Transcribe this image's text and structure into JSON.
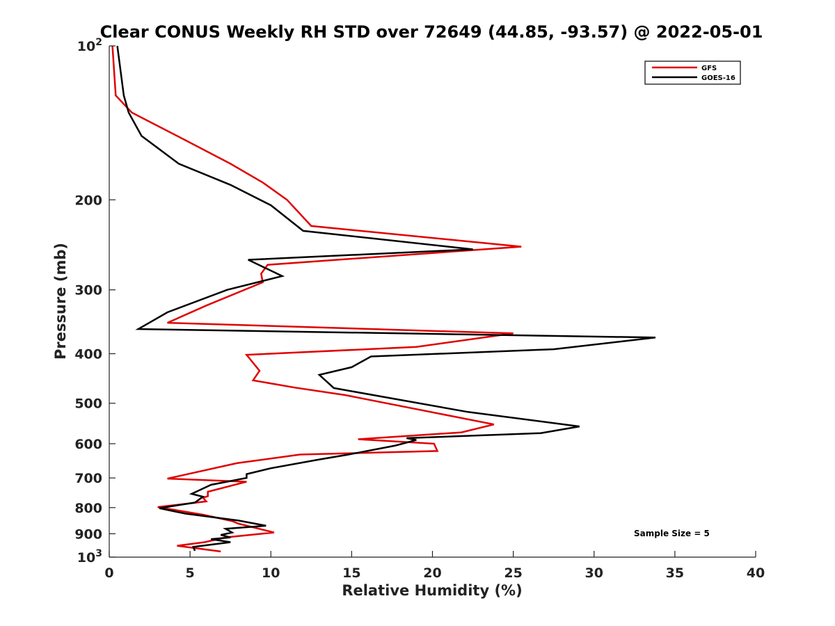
{
  "chart_data": {
    "type": "line",
    "title": "Clear CONUS Weekly RH STD over 72649 (44.85, -93.57) @ 2022-05-01",
    "xlabel": "Relative Humidity (%)",
    "ylabel": "Pressure (mb)",
    "xlim": [
      0,
      40
    ],
    "ylim": [
      100,
      1000
    ],
    "y_scale": "log",
    "y_reversed": true,
    "grid": false,
    "legend_position": "top-right",
    "x_ticks": [
      "0",
      "5",
      "10",
      "15",
      "20",
      "25",
      "30",
      "35",
      "40"
    ],
    "y_ticks": [
      {
        "value": 100,
        "base": "10",
        "exp": "2"
      },
      {
        "value": 200,
        "label": "200"
      },
      {
        "value": 300,
        "label": "300"
      },
      {
        "value": 400,
        "label": "400"
      },
      {
        "value": 500,
        "label": "500"
      },
      {
        "value": 600,
        "label": "600"
      },
      {
        "value": 700,
        "label": "700"
      },
      {
        "value": 800,
        "label": "800"
      },
      {
        "value": 900,
        "label": "900"
      },
      {
        "value": 1000,
        "base": "10",
        "exp": "3"
      }
    ],
    "series": [
      {
        "name": "GFS",
        "color": "#e00000",
        "points": [
          [
            0.2,
            100
          ],
          [
            0.4,
            125
          ],
          [
            1.4,
            135
          ],
          [
            4.2,
            150
          ],
          [
            7.5,
            170
          ],
          [
            9.5,
            185
          ],
          [
            11.0,
            200
          ],
          [
            12.5,
            225
          ],
          [
            25.5,
            247
          ],
          [
            9.8,
            268
          ],
          [
            9.4,
            279
          ],
          [
            9.5,
            290
          ],
          [
            6.0,
            322
          ],
          [
            3.6,
            348
          ],
          [
            25.0,
            365
          ],
          [
            19.0,
            388
          ],
          [
            8.5,
            402
          ],
          [
            9.3,
            432
          ],
          [
            8.9,
            451
          ],
          [
            11.5,
            466
          ],
          [
            14.6,
            482
          ],
          [
            23.8,
            550
          ],
          [
            21.8,
            570
          ],
          [
            15.4,
            588
          ],
          [
            20.1,
            600
          ],
          [
            20.3,
            620
          ],
          [
            11.8,
            630
          ],
          [
            7.9,
            655
          ],
          [
            3.6,
            702
          ],
          [
            8.5,
            712
          ],
          [
            6.1,
            745
          ],
          [
            6.1,
            760
          ],
          [
            5.8,
            765
          ],
          [
            6.0,
            778
          ],
          [
            3.0,
            798
          ],
          [
            5.8,
            826
          ],
          [
            7.6,
            850
          ],
          [
            8.0,
            860
          ],
          [
            10.2,
            895
          ],
          [
            7.2,
            915
          ],
          [
            5.9,
            935
          ],
          [
            4.2,
            950
          ],
          [
            6.9,
            975
          ]
        ]
      },
      {
        "name": "GOES-16",
        "color": "#000000",
        "points": [
          [
            0.5,
            100
          ],
          [
            0.9,
            125
          ],
          [
            1.2,
            135
          ],
          [
            2.0,
            150
          ],
          [
            4.3,
            170
          ],
          [
            7.5,
            187
          ],
          [
            10.0,
            205
          ],
          [
            12.0,
            230
          ],
          [
            22.5,
            250
          ],
          [
            8.6,
            262
          ],
          [
            10.7,
            282
          ],
          [
            7.3,
            300
          ],
          [
            3.6,
            332
          ],
          [
            1.8,
            358
          ],
          [
            33.8,
            372
          ],
          [
            27.5,
            392
          ],
          [
            16.2,
            405
          ],
          [
            15.0,
            425
          ],
          [
            13.0,
            440
          ],
          [
            13.9,
            467
          ],
          [
            22.2,
            520
          ],
          [
            29.1,
            555
          ],
          [
            26.7,
            572
          ],
          [
            18.4,
            585
          ],
          [
            19.0,
            590
          ],
          [
            17.7,
            605
          ],
          [
            14.8,
            630
          ],
          [
            12.9,
            645
          ],
          [
            10.0,
            670
          ],
          [
            8.5,
            688
          ],
          [
            8.5,
            700
          ],
          [
            6.3,
            722
          ],
          [
            5.1,
            752
          ],
          [
            5.8,
            762
          ],
          [
            5.3,
            782
          ],
          [
            3.1,
            802
          ],
          [
            4.7,
            822
          ],
          [
            8.0,
            848
          ],
          [
            9.7,
            868
          ],
          [
            7.2,
            880
          ],
          [
            7.6,
            895
          ],
          [
            6.9,
            905
          ],
          [
            7.5,
            915
          ],
          [
            6.3,
            922
          ],
          [
            7.5,
            935
          ],
          [
            5.2,
            955
          ],
          [
            5.3,
            972
          ]
        ]
      }
    ],
    "annotations": [
      "Sample Size = 5"
    ]
  }
}
